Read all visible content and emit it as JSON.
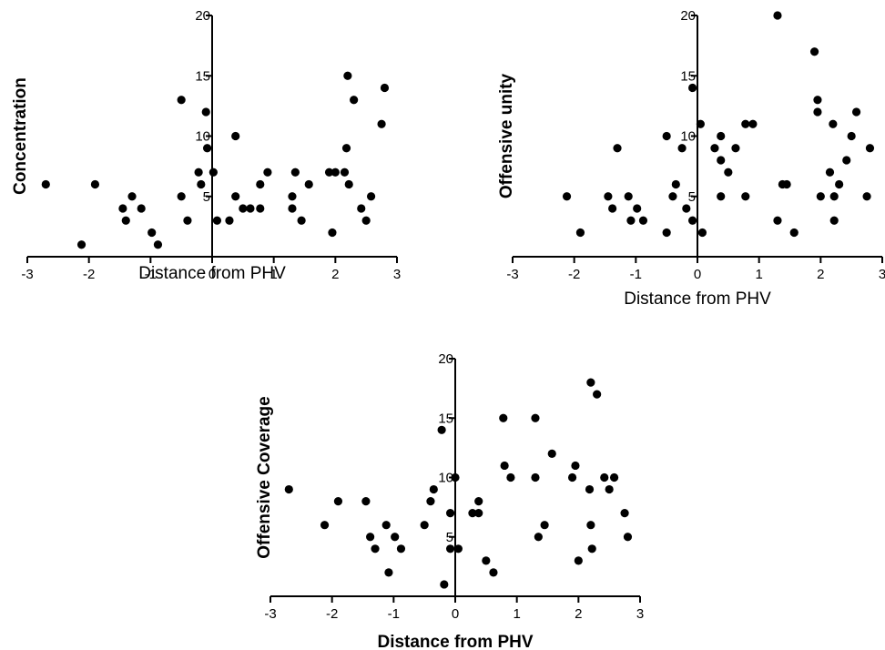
{
  "chart_data": [
    {
      "type": "scatter",
      "xlabel": "Distance from PHV",
      "ylabel": "Concentration",
      "xlim": [
        -3,
        3
      ],
      "ylim": [
        0,
        20
      ],
      "xticks": [
        "-3",
        "-2",
        "-1",
        "0",
        "1",
        "2",
        "3"
      ],
      "yticks": [
        "5",
        "10",
        "15",
        "20"
      ],
      "grid": false,
      "points": [
        [
          -2.7,
          6
        ],
        [
          -2.12,
          1
        ],
        [
          -1.9,
          6
        ],
        [
          -1.45,
          4
        ],
        [
          -1.4,
          3
        ],
        [
          -1.3,
          5
        ],
        [
          -1.15,
          4
        ],
        [
          -0.98,
          2
        ],
        [
          -0.88,
          1
        ],
        [
          -0.5,
          13
        ],
        [
          -0.5,
          5
        ],
        [
          -0.4,
          3
        ],
        [
          -0.22,
          7
        ],
        [
          -0.18,
          6
        ],
        [
          -0.1,
          12
        ],
        [
          -0.08,
          9
        ],
        [
          0.02,
          7
        ],
        [
          0.08,
          3
        ],
        [
          0.28,
          3
        ],
        [
          0.38,
          10
        ],
        [
          0.38,
          5
        ],
        [
          0.5,
          4
        ],
        [
          0.62,
          4
        ],
        [
          0.78,
          4
        ],
        [
          0.78,
          6
        ],
        [
          0.9,
          7
        ],
        [
          1.3,
          5
        ],
        [
          1.3,
          4
        ],
        [
          1.35,
          7
        ],
        [
          1.45,
          3
        ],
        [
          1.57,
          6
        ],
        [
          1.9,
          7
        ],
        [
          1.95,
          2
        ],
        [
          2.0,
          7
        ],
        [
          2.2,
          15
        ],
        [
          2.18,
          9
        ],
        [
          2.15,
          7
        ],
        [
          2.22,
          6
        ],
        [
          2.3,
          13
        ],
        [
          2.42,
          4
        ],
        [
          2.5,
          3
        ],
        [
          2.58,
          5
        ],
        [
          2.75,
          11
        ],
        [
          2.8,
          14
        ]
      ]
    },
    {
      "type": "scatter",
      "xlabel": "Distance from PHV",
      "ylabel": "Offensive unity",
      "xlim": [
        -3,
        3
      ],
      "ylim": [
        0,
        20
      ],
      "xticks": [
        "-3",
        "-2",
        "-1",
        "0",
        "1",
        "2",
        "3"
      ],
      "yticks": [
        "5",
        "10",
        "15",
        "20"
      ],
      "grid": false,
      "points": [
        [
          -2.12,
          5
        ],
        [
          -1.9,
          2
        ],
        [
          -1.45,
          5
        ],
        [
          -1.38,
          4
        ],
        [
          -1.3,
          9
        ],
        [
          -1.12,
          5
        ],
        [
          -1.08,
          3
        ],
        [
          -0.98,
          4
        ],
        [
          -0.88,
          3
        ],
        [
          -0.5,
          10
        ],
        [
          -0.5,
          2
        ],
        [
          -0.4,
          5
        ],
        [
          -0.35,
          6
        ],
        [
          -0.25,
          9
        ],
        [
          -0.18,
          4
        ],
        [
          -0.08,
          14
        ],
        [
          -0.08,
          3
        ],
        [
          0.05,
          11
        ],
        [
          0.08,
          2
        ],
        [
          0.28,
          9
        ],
        [
          0.38,
          10
        ],
        [
          0.38,
          8
        ],
        [
          0.38,
          5
        ],
        [
          0.5,
          7
        ],
        [
          0.62,
          9
        ],
        [
          0.78,
          11
        ],
        [
          0.78,
          5
        ],
        [
          0.9,
          11
        ],
        [
          1.3,
          20
        ],
        [
          1.3,
          3
        ],
        [
          1.38,
          6
        ],
        [
          1.45,
          6
        ],
        [
          1.57,
          2
        ],
        [
          1.9,
          17
        ],
        [
          1.95,
          13
        ],
        [
          1.95,
          12
        ],
        [
          2.0,
          5
        ],
        [
          2.15,
          7
        ],
        [
          2.2,
          11
        ],
        [
          2.22,
          5
        ],
        [
          2.22,
          3
        ],
        [
          2.3,
          6
        ],
        [
          2.42,
          8
        ],
        [
          2.5,
          10
        ],
        [
          2.58,
          12
        ],
        [
          2.75,
          5
        ],
        [
          2.8,
          9
        ]
      ]
    },
    {
      "type": "scatter",
      "xlabel": "Distance from PHV",
      "ylabel": "Offensive Coverage",
      "xlim": [
        -3,
        3
      ],
      "ylim": [
        0,
        20
      ],
      "xticks": [
        "-3",
        "-2",
        "-1",
        "0",
        "1",
        "2",
        "3"
      ],
      "yticks": [
        "5",
        "10",
        "15",
        "20"
      ],
      "grid": false,
      "points": [
        [
          -2.7,
          9
        ],
        [
          -2.12,
          6
        ],
        [
          -1.9,
          8
        ],
        [
          -1.45,
          8
        ],
        [
          -1.38,
          5
        ],
        [
          -1.3,
          4
        ],
        [
          -1.12,
          6
        ],
        [
          -1.08,
          2
        ],
        [
          -0.98,
          5
        ],
        [
          -0.88,
          4
        ],
        [
          -0.5,
          6
        ],
        [
          -0.4,
          8
        ],
        [
          -0.35,
          9
        ],
        [
          -0.22,
          14
        ],
        [
          -0.18,
          1
        ],
        [
          -0.08,
          7
        ],
        [
          -0.08,
          4
        ],
        [
          0.0,
          10
        ],
        [
          0.05,
          4
        ],
        [
          0.28,
          7
        ],
        [
          0.38,
          8
        ],
        [
          0.38,
          7
        ],
        [
          0.5,
          3
        ],
        [
          0.62,
          2
        ],
        [
          0.78,
          15
        ],
        [
          0.8,
          11
        ],
        [
          0.9,
          10
        ],
        [
          1.3,
          15
        ],
        [
          1.3,
          10
        ],
        [
          1.35,
          5
        ],
        [
          1.45,
          6
        ],
        [
          1.57,
          12
        ],
        [
          1.9,
          10
        ],
        [
          1.95,
          11
        ],
        [
          2.0,
          3
        ],
        [
          2.2,
          18
        ],
        [
          2.18,
          9
        ],
        [
          2.2,
          6
        ],
        [
          2.22,
          4
        ],
        [
          2.3,
          17
        ],
        [
          2.42,
          10
        ],
        [
          2.5,
          9
        ],
        [
          2.58,
          10
        ],
        [
          2.75,
          7
        ],
        [
          2.8,
          5
        ]
      ]
    }
  ]
}
